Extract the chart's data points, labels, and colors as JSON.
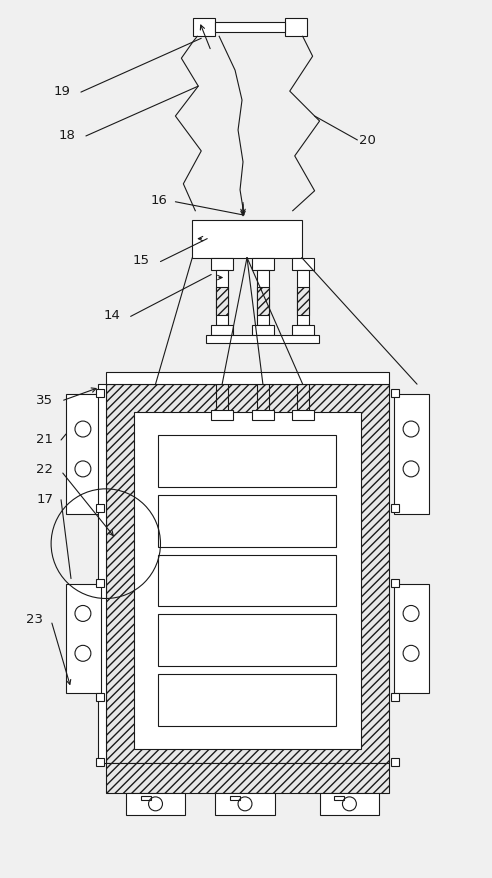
{
  "bg_color": "#f0f0f0",
  "line_color": "#1a1a1a",
  "figsize": [
    4.92,
    8.79
  ],
  "dpi": 100
}
